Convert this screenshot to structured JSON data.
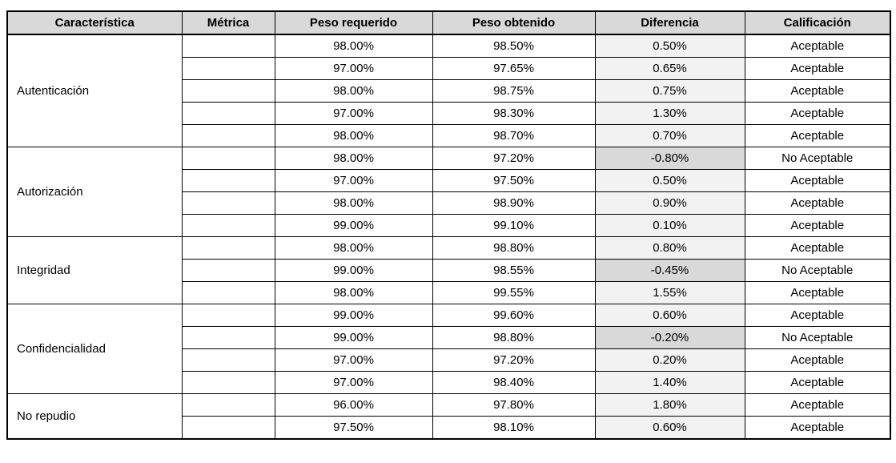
{
  "table": {
    "headers": [
      "Característica",
      "Métrica",
      "Peso requerido",
      "Peso obtenido",
      "Diferencia",
      "Calificación"
    ],
    "groups": [
      {
        "name": "Autenticación",
        "rows": [
          {
            "metric": "",
            "required": "98.00%",
            "obtained": "98.50%",
            "difference": "0.50%",
            "rating": "Aceptable"
          },
          {
            "metric": "",
            "required": "97.00%",
            "obtained": "97.65%",
            "difference": "0.65%",
            "rating": "Aceptable"
          },
          {
            "metric": "",
            "required": "98.00%",
            "obtained": "98.75%",
            "difference": "0.75%",
            "rating": "Aceptable"
          },
          {
            "metric": "",
            "required": "97.00%",
            "obtained": "98.30%",
            "difference": "1.30%",
            "rating": "Aceptable"
          },
          {
            "metric": "",
            "required": "98.00%",
            "obtained": "98.70%",
            "difference": "0.70%",
            "rating": "Aceptable"
          }
        ]
      },
      {
        "name": "Autorización",
        "rows": [
          {
            "metric": "",
            "required": "98.00%",
            "obtained": "97.20%",
            "difference": "-0.80%",
            "rating": "No Aceptable"
          },
          {
            "metric": "",
            "required": "97.00%",
            "obtained": "97.50%",
            "difference": "0.50%",
            "rating": "Aceptable"
          },
          {
            "metric": "",
            "required": "98.00%",
            "obtained": "98.90%",
            "difference": "0.90%",
            "rating": "Aceptable"
          },
          {
            "metric": "",
            "required": "99.00%",
            "obtained": "99.10%",
            "difference": "0.10%",
            "rating": "Aceptable"
          }
        ]
      },
      {
        "name": "Integridad",
        "rows": [
          {
            "metric": "",
            "required": "98.00%",
            "obtained": "98.80%",
            "difference": "0.80%",
            "rating": "Aceptable"
          },
          {
            "metric": "",
            "required": "99.00%",
            "obtained": "98.55%",
            "difference": "-0.45%",
            "rating": "No Aceptable"
          },
          {
            "metric": "",
            "required": "98.00%",
            "obtained": "99.55%",
            "difference": "1.55%",
            "rating": "Aceptable"
          }
        ]
      },
      {
        "name": "Confidencialidad",
        "rows": [
          {
            "metric": "",
            "required": "99.00%",
            "obtained": "99.60%",
            "difference": "0.60%",
            "rating": "Aceptable"
          },
          {
            "metric": "",
            "required": "99.00%",
            "obtained": "98.80%",
            "difference": "-0.20%",
            "rating": "No Aceptable"
          },
          {
            "metric": "",
            "required": "97.00%",
            "obtained": "97.20%",
            "difference": "0.20%",
            "rating": "Aceptable"
          },
          {
            "metric": "",
            "required": "97.00%",
            "obtained": "98.40%",
            "difference": "1.40%",
            "rating": "Aceptable"
          }
        ]
      },
      {
        "name": "No repudio",
        "rows": [
          {
            "metric": "",
            "required": "96.00%",
            "obtained": "97.80%",
            "difference": "1.80%",
            "rating": "Aceptable"
          },
          {
            "metric": "",
            "required": "97.50%",
            "obtained": "98.10%",
            "difference": "0.60%",
            "rating": "Aceptable"
          }
        ]
      }
    ],
    "colors": {
      "header_bg": "#d9d9d9",
      "diff_positive_bg": "#f2f2f2",
      "diff_negative_bg": "#d9d9d9",
      "border": "#000000"
    }
  }
}
